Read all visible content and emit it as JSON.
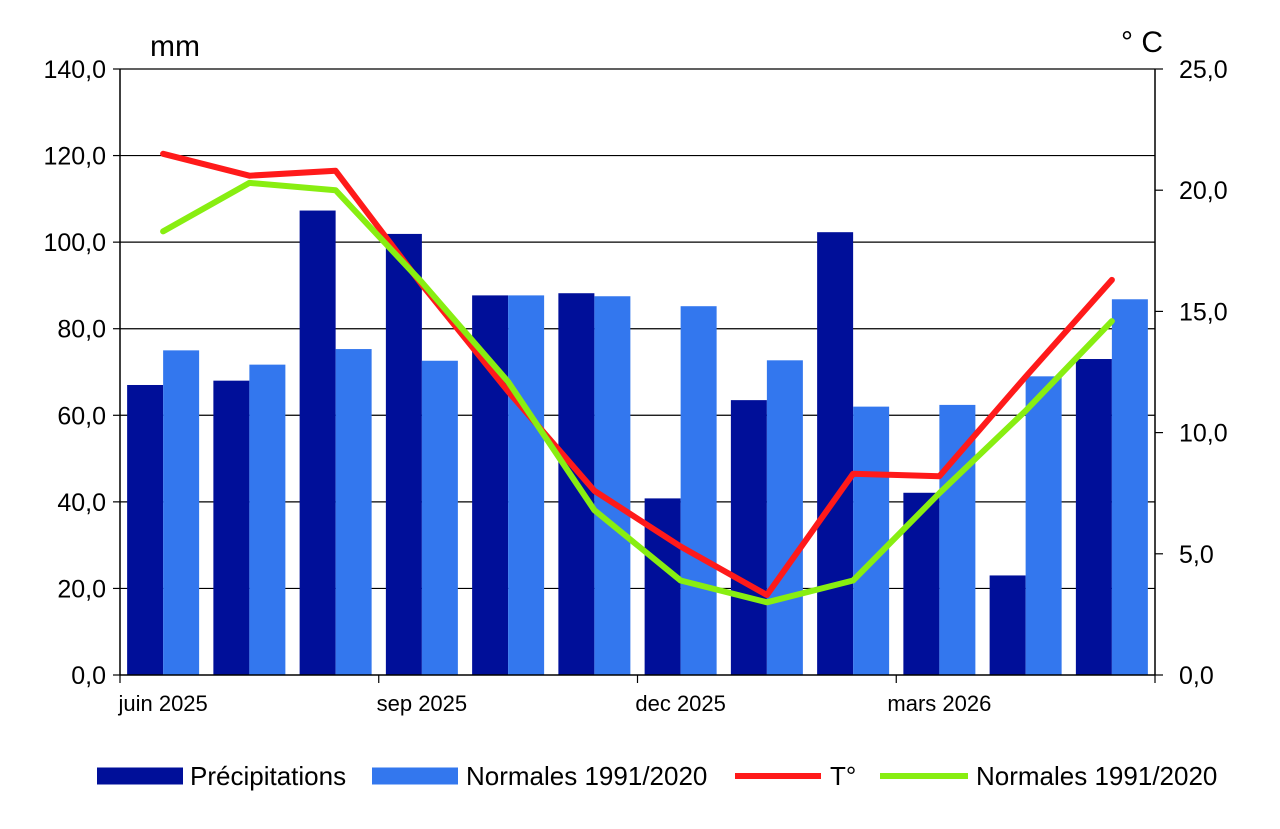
{
  "chart_data": {
    "type": "bar",
    "categories": [
      "juin 2025",
      "",
      "",
      "sep 2025",
      "",
      "",
      "dec 2025",
      "",
      "",
      "mars 2026",
      "",
      ""
    ],
    "y_left": {
      "unit": "mm",
      "ylim": [
        0,
        140
      ],
      "ticks": [
        "0,0",
        "20,0",
        "40,0",
        "60,0",
        "80,0",
        "100,0",
        "120,0",
        "140,0"
      ]
    },
    "y_right": {
      "unit": "° C",
      "ylim": [
        0,
        25
      ],
      "ticks": [
        "0,0",
        "5,0",
        "10,0",
        "15,0",
        "20,0",
        "25,0"
      ]
    },
    "series": [
      {
        "name": "Précipitations",
        "kind": "bar",
        "axis": "left",
        "color": "#000f99",
        "values": [
          67,
          68,
          107.3,
          101.9,
          87.7,
          88.2,
          40.8,
          63.5,
          102.3,
          42.1,
          23,
          73
        ]
      },
      {
        "name": "Normales 1991/2020",
        "kind": "bar",
        "axis": "left",
        "color": "#3377ee",
        "values": [
          75,
          71.7,
          75.3,
          72.6,
          87.7,
          87.5,
          85.2,
          72.7,
          62,
          62.4,
          69,
          86.8
        ]
      },
      {
        "name": "T°",
        "kind": "line",
        "axis": "right",
        "color": "#ff1a1a",
        "values": [
          21.5,
          20.6,
          20.8,
          16.1,
          11.7,
          7.6,
          5.3,
          3.3,
          8.3,
          8.2,
          12.3,
          16.3
        ]
      },
      {
        "name": "Normales 1991/2020",
        "kind": "line",
        "axis": "right",
        "color": "#88ee11",
        "values": [
          18.3,
          20.3,
          20.0,
          16.2,
          12.1,
          6.8,
          3.9,
          3.0,
          3.9,
          7.5,
          10.9,
          14.6
        ]
      }
    ],
    "grid": "horizontal",
    "legend_position": "bottom"
  }
}
